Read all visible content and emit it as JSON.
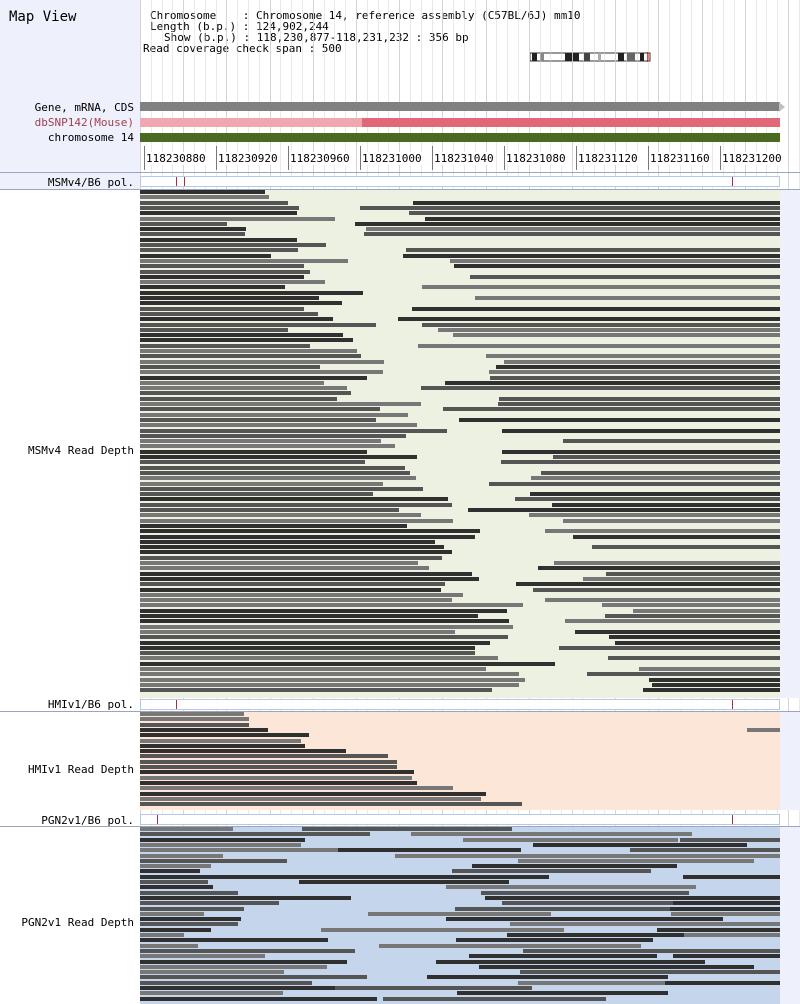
{
  "window": {
    "title": "Map View"
  },
  "info": {
    "chromosome_line": "Chromosome    : Chromosome 14, reference assembly (C57BL/6J) mm10",
    "length_line": "Length (b.p.) : 124,902,244",
    "show_line": "Show (b.p.) : 118,230,877-118,231,232 : 356 bp",
    "coverage_line": "Read coverage check span : 500"
  },
  "tracks": [
    {
      "label": "Gene, mRNA, CDS",
      "color": "#808080"
    },
    {
      "label": "dbSNP142(Mouse)",
      "color": "#e06878",
      "color_light": "#f0a8b0"
    },
    {
      "label": "chromosome 14",
      "color": "#4a6a22"
    }
  ],
  "axis": {
    "ticks": [
      "118230880",
      "118230920",
      "118230960",
      "118231000",
      "118231040",
      "118231080",
      "118231120",
      "118231160",
      "118231200"
    ]
  },
  "sections": [
    {
      "pol_label": "MSMv4/B6 pol.",
      "depth_label": "MSMv4 Read Depth",
      "bg": "#edf1e2"
    },
    {
      "pol_label": "HMIv1/B6 pol.",
      "depth_label": "HMIv1 Read Depth",
      "bg": "#fbe6d8"
    },
    {
      "pol_label": "PGN2v1/B6 pol.",
      "depth_label": "PGN2v1 Read Depth",
      "bg": "#c5d6ec"
    }
  ],
  "colors": {
    "read_dark": "#303030",
    "read_mid": "#555555",
    "read_light": "#777777",
    "pol_marker": "#a0304a"
  }
}
